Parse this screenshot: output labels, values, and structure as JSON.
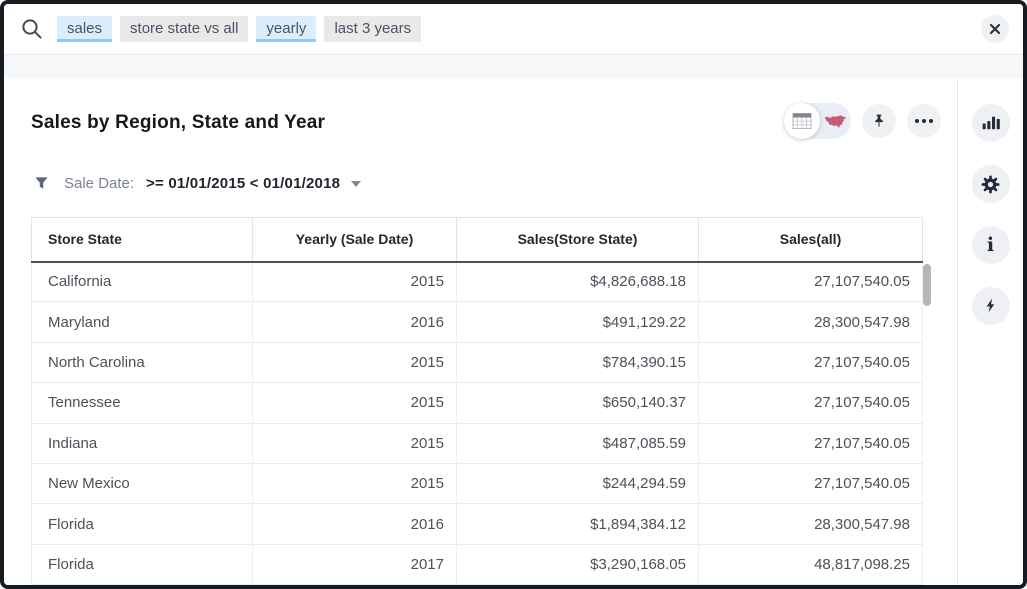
{
  "search": {
    "tokens": [
      {
        "label": "sales",
        "style": "highlight"
      },
      {
        "label": "store state vs all",
        "style": "plain"
      },
      {
        "label": "yearly",
        "style": "highlight"
      },
      {
        "label": "last 3 years",
        "style": "plain"
      }
    ]
  },
  "header": {
    "title": "Sales by Region, State and Year"
  },
  "filter": {
    "label": "Sale Date:",
    "condition": ">= 01/01/2015 < 01/01/2018"
  },
  "table": {
    "columns": [
      {
        "label": "Store State",
        "align": "left",
        "header_align": "left"
      },
      {
        "label": "Yearly (Sale Date)",
        "align": "right",
        "header_align": "center"
      },
      {
        "label": "Sales(Store State)",
        "align": "right",
        "header_align": "center"
      },
      {
        "label": "Sales(all)",
        "align": "right",
        "header_align": "center"
      }
    ],
    "rows": [
      [
        "California",
        "2015",
        "$4,826,688.18",
        "27,107,540.05"
      ],
      [
        "Maryland",
        "2016",
        "$491,129.22",
        "28,300,547.98"
      ],
      [
        "North Carolina",
        "2015",
        "$784,390.15",
        "27,107,540.05"
      ],
      [
        "Tennessee",
        "2015",
        "$650,140.37",
        "27,107,540.05"
      ],
      [
        "Indiana",
        "2015",
        "$487,085.59",
        "27,107,540.05"
      ],
      [
        "New Mexico",
        "2015",
        "$244,294.59",
        "27,107,540.05"
      ],
      [
        "Florida",
        "2016",
        "$1,894,384.12",
        "28,300,547.98"
      ],
      [
        "Florida",
        "2017",
        "$3,290,168.05",
        "48,817,098.25"
      ]
    ]
  },
  "icons": {
    "search": "magnifier",
    "close": "x",
    "view_toggle": [
      "table-grid",
      "us-map"
    ],
    "pin": "pushpin",
    "more": "ellipsis",
    "filter": "funnel",
    "dropdown": "caret-down",
    "info_glyph": "i",
    "sidebar": [
      "bar-chart",
      "gear",
      "info",
      "lightning"
    ]
  },
  "colors": {
    "token_highlight_bg": "#dceefc",
    "token_highlight_underline": "#8fcaf2",
    "token_plain_bg": "#e9e9ea",
    "band_bg": "#f5f7f9",
    "header_divider": "#49525e",
    "icon_dark": "#232c3a",
    "map_red": "#c44a64",
    "window_border": "#161b22"
  }
}
